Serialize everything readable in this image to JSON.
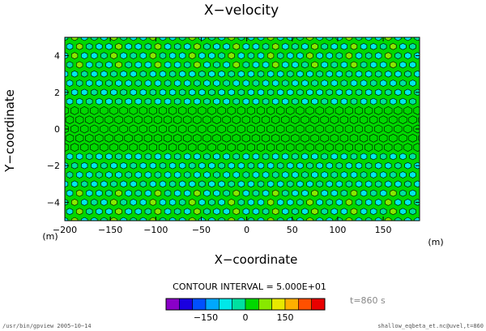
{
  "chart_data": {
    "type": "heatmap",
    "title": "X−velocity",
    "xlabel": "X−coordinate",
    "ylabel": "Y−coordinate",
    "x_unit": "(m)",
    "y_unit": "(m)",
    "xlim": [
      -200,
      190
    ],
    "ylim": [
      -5,
      5
    ],
    "x_ticks": [
      -200,
      -150,
      -100,
      -50,
      0,
      50,
      100,
      150
    ],
    "x_tick_labels": [
      "−200",
      "−150",
      "−100",
      "−50",
      "0",
      "50",
      "100",
      "150"
    ],
    "y_ticks": [
      -4,
      -2,
      0,
      2,
      4
    ],
    "y_tick_labels": [
      "−4",
      "−2",
      "0",
      "2",
      "4"
    ],
    "contour_interval_text": "CONTOUR INTERVAL = 5.000E+01",
    "colorbar": {
      "colors": [
        "#8a00c8",
        "#1a00e0",
        "#0050ff",
        "#00a8ff",
        "#00e8e8",
        "#00e0a0",
        "#00d800",
        "#88e800",
        "#e8e800",
        "#ffb000",
        "#ff5000",
        "#e80000"
      ],
      "tick_values": [
        -150,
        0,
        150
      ],
      "tick_labels": [
        "−150",
        "0",
        "150"
      ]
    },
    "time_label": "t=860 s",
    "footer_left": "/usr/bin/gpview  2005−10−14",
    "footer_right": "shallow_eqbeta_et.nc@uvel,t=860"
  }
}
